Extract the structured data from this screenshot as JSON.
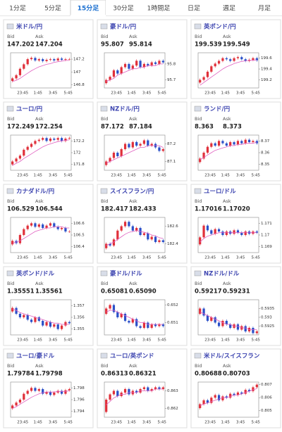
{
  "tabs": [
    "1分足",
    "5分足",
    "15分足",
    "30分足",
    "1時間足",
    "日足",
    "週足",
    "月足"
  ],
  "selected_tab": 2,
  "labels": {
    "bid": "Bid",
    "ask": "Ask"
  },
  "time_labels": [
    "23:45",
    "1:45",
    "3:45",
    "5:45"
  ],
  "colors": {
    "up": "#e0303a",
    "down": "#2b50c8",
    "ma": "#e060c0",
    "name": "#3d45b0"
  },
  "cards": [
    {
      "name": "米ドル/円",
      "bid": "147.202",
      "ask": "147.204",
      "ylim": [
        146.75,
        147.3
      ],
      "yticks": [
        147.2,
        147,
        146.8
      ],
      "closes": [
        146.86,
        146.9,
        146.95,
        147.05,
        147.12,
        147.2,
        147.22,
        147.18,
        147.2,
        147.17,
        147.19,
        147.2,
        147.18,
        147.21,
        147.19,
        147.2,
        147.2
      ],
      "ma": [
        146.85,
        146.87,
        146.9,
        146.94,
        146.98,
        147.02,
        147.05,
        147.08,
        147.1,
        147.12,
        147.13,
        147.15,
        147.16,
        147.17,
        147.18,
        147.18
      ]
    },
    {
      "name": "豪ドル/円",
      "bid": "95.807",
      "ask": "95.814",
      "ylim": [
        95.65,
        95.87
      ],
      "yticks": [
        95.8,
        95.7
      ],
      "closes": [
        95.68,
        95.7,
        95.72,
        95.76,
        95.74,
        95.78,
        95.8,
        95.77,
        95.79,
        95.82,
        95.78,
        95.8,
        95.79,
        95.81,
        95.8,
        95.82,
        95.81
      ],
      "ma": [
        95.69,
        95.7,
        95.71,
        95.73,
        95.74,
        95.75,
        95.76,
        95.77,
        95.77,
        95.78,
        95.78,
        95.79,
        95.79,
        95.79,
        95.8,
        95.8
      ]
    },
    {
      "name": "英ポンド/円",
      "bid": "199.539",
      "ask": "199.549",
      "ylim": [
        199.05,
        199.7
      ],
      "yticks": [
        199.6,
        199.4,
        199.2
      ],
      "closes": [
        199.15,
        199.2,
        199.25,
        199.35,
        199.45,
        199.5,
        199.55,
        199.6,
        199.58,
        199.55,
        199.6,
        199.62,
        199.58,
        199.55,
        199.57,
        199.6,
        199.56
      ],
      "ma": [
        199.1,
        199.15,
        199.2,
        199.25,
        199.3,
        199.35,
        199.4,
        199.44,
        199.47,
        199.5,
        199.52,
        199.54,
        199.55,
        199.56,
        199.56,
        199.57
      ]
    },
    {
      "name": "ユーロ/円",
      "bid": "172.249",
      "ask": "172.254",
      "ylim": [
        171.7,
        172.3
      ],
      "yticks": [
        172.2,
        172,
        171.8
      ],
      "closes": [
        171.8,
        171.85,
        171.9,
        171.95,
        172.05,
        172.1,
        172.15,
        172.2,
        172.22,
        172.25,
        172.2,
        172.24,
        172.22,
        172.25,
        172.2,
        172.24,
        172.25
      ],
      "ma": [
        171.78,
        171.82,
        171.85,
        171.9,
        171.94,
        171.98,
        172.02,
        172.06,
        172.1,
        172.13,
        172.15,
        172.17,
        172.19,
        172.2,
        172.21,
        172.22
      ]
    },
    {
      "name": "NZドル/円",
      "bid": "87.172",
      "ask": "87.184",
      "ylim": [
        87.05,
        87.25
      ],
      "yticks": [
        87.2,
        87.1
      ],
      "closes": [
        87.08,
        87.1,
        87.12,
        87.15,
        87.13,
        87.17,
        87.2,
        87.18,
        87.21,
        87.19,
        87.2,
        87.22,
        87.19,
        87.2,
        87.18,
        87.16,
        87.17
      ],
      "ma": [
        87.09,
        87.1,
        87.11,
        87.12,
        87.13,
        87.14,
        87.15,
        87.16,
        87.17,
        87.18,
        87.18,
        87.19,
        87.19,
        87.19,
        87.19,
        87.18
      ]
    },
    {
      "name": "ランド/円",
      "bid": "8.363",
      "ask": "8.373",
      "ylim": [
        8.345,
        8.375
      ],
      "yticks": [
        8.37,
        8.36,
        8.35
      ],
      "closes": [
        8.352,
        8.355,
        8.36,
        8.365,
        8.368,
        8.366,
        8.37,
        8.368,
        8.366,
        8.369,
        8.367,
        8.37,
        8.368,
        8.371,
        8.369,
        8.37,
        8.368
      ],
      "ma": [
        8.354,
        8.356,
        8.358,
        8.36,
        8.362,
        8.363,
        8.364,
        8.365,
        8.366,
        8.366,
        8.367,
        8.367,
        8.368,
        8.368,
        8.368,
        8.369
      ]
    },
    {
      "name": "カナダドル/円",
      "bid": "106.529",
      "ask": "106.544",
      "ylim": [
        106.35,
        106.65
      ],
      "yticks": [
        106.6,
        106.5,
        106.4
      ],
      "closes": [
        106.42,
        106.45,
        106.43,
        106.5,
        106.55,
        106.58,
        106.6,
        106.57,
        106.59,
        106.56,
        106.58,
        106.6,
        106.57,
        106.55,
        106.56,
        106.53,
        106.53
      ],
      "ma": [
        106.43,
        106.44,
        106.45,
        106.47,
        106.49,
        106.51,
        106.53,
        106.54,
        106.55,
        106.56,
        106.56,
        106.57,
        106.57,
        106.57,
        106.56,
        106.56
      ]
    },
    {
      "name": "スイスフラン/円",
      "bid": "182.417",
      "ask": "182.433",
      "ylim": [
        182.3,
        182.7
      ],
      "yticks": [
        182.6,
        182.4
      ],
      "closes": [
        182.35,
        182.4,
        182.38,
        182.45,
        182.55,
        182.6,
        182.65,
        182.6,
        182.55,
        182.58,
        182.5,
        182.52,
        182.45,
        182.48,
        182.42,
        182.44,
        182.42
      ],
      "ma": [
        182.38,
        182.4,
        182.42,
        182.45,
        182.48,
        182.51,
        182.53,
        182.54,
        182.55,
        182.54,
        182.53,
        182.52,
        182.5,
        182.49,
        182.47,
        182.46
      ]
    },
    {
      "name": "ユーロ/ドル",
      "bid": "1.17016",
      "ask": "1.17020",
      "ylim": [
        1.1685,
        1.1715
      ],
      "yticks": [
        1.171,
        1.17,
        1.169
      ],
      "closes": [
        1.1692,
        1.1698,
        1.1708,
        1.1704,
        1.1701,
        1.1705,
        1.1703,
        1.17,
        1.1703,
        1.1701,
        1.1704,
        1.1702,
        1.17,
        1.1703,
        1.1701,
        1.1703,
        1.1702
      ],
      "ma": [
        1.1694,
        1.1697,
        1.1699,
        1.17,
        1.1701,
        1.1702,
        1.1702,
        1.1702,
        1.1702,
        1.1702,
        1.1702,
        1.1702,
        1.1702,
        1.1702,
        1.1702,
        1.1702
      ]
    },
    {
      "name": "英ポンド/ドル",
      "bid": "1.35551",
      "ask": "1.35561",
      "ylim": [
        1.3545,
        1.3575
      ],
      "yticks": [
        1.357,
        1.356,
        1.355
      ],
      "closes": [
        1.3565,
        1.3568,
        1.3563,
        1.356,
        1.3562,
        1.3558,
        1.3556,
        1.356,
        1.3557,
        1.3553,
        1.3556,
        1.3552,
        1.3554,
        1.355,
        1.3553,
        1.3556,
        1.3555
      ],
      "ma": [
        1.3567,
        1.3566,
        1.3564,
        1.3563,
        1.3562,
        1.3561,
        1.356,
        1.3559,
        1.3558,
        1.3557,
        1.3556,
        1.3555,
        1.3555,
        1.3554,
        1.3554,
        1.3554
      ]
    },
    {
      "name": "豪ドル/ドル",
      "bid": "0.65081",
      "ask": "0.65090",
      "ylim": [
        0.6503,
        0.6523
      ],
      "yticks": [
        0.652,
        0.651
      ],
      "closes": [
        0.6515,
        0.6518,
        0.652,
        0.6516,
        0.6513,
        0.6515,
        0.6511,
        0.651,
        0.6512,
        0.6508,
        0.6507,
        0.651,
        0.6507,
        0.6509,
        0.6508,
        0.6509,
        0.6508
      ],
      "ma": [
        0.6516,
        0.6517,
        0.6517,
        0.6516,
        0.6515,
        0.6514,
        0.6513,
        0.6512,
        0.6511,
        0.651,
        0.651,
        0.6509,
        0.6509,
        0.6509,
        0.6509,
        0.6509
      ]
    },
    {
      "name": "NZドル/ドル",
      "bid": "0.59217",
      "ask": "0.59231",
      "ylim": [
        0.592,
        0.594
      ],
      "yticks": [
        0.5935,
        0.593,
        0.5925
      ],
      "closes": [
        0.5932,
        0.5935,
        0.5931,
        0.5928,
        0.593,
        0.5927,
        0.5925,
        0.5928,
        0.5926,
        0.5924,
        0.5926,
        0.5923,
        0.5925,
        0.5922,
        0.5924,
        0.5921,
        0.5922
      ],
      "ma": [
        0.5933,
        0.5932,
        0.5931,
        0.593,
        0.5929,
        0.5928,
        0.5927,
        0.5926,
        0.5926,
        0.5925,
        0.5925,
        0.5924,
        0.5924,
        0.5923,
        0.5923,
        0.5923
      ]
    },
    {
      "name": "ユーロ/豪ドル",
      "bid": "1.79784",
      "ask": "1.79798",
      "ylim": [
        1.793,
        1.799
      ],
      "yticks": [
        1.798,
        1.796,
        1.794
      ],
      "closes": [
        1.7945,
        1.795,
        1.7955,
        1.796,
        1.797,
        1.7975,
        1.798,
        1.7975,
        1.7978,
        1.797,
        1.7973,
        1.7968,
        1.7972,
        1.7975,
        1.797,
        1.7976,
        1.7978
      ],
      "ma": [
        1.7945,
        1.7948,
        1.7952,
        1.7956,
        1.796,
        1.7964,
        1.7967,
        1.797,
        1.7972,
        1.7973,
        1.7973,
        1.7973,
        1.7974,
        1.7974,
        1.7974,
        1.7975
      ]
    },
    {
      "name": "ユーロ/英ポンド",
      "bid": "0.86313",
      "ask": "0.86321",
      "ylim": [
        0.8615,
        0.8635
      ],
      "yticks": [
        0.863,
        0.862
      ],
      "closes": [
        0.8618,
        0.8625,
        0.8628,
        0.863,
        0.8627,
        0.8629,
        0.8631,
        0.8628,
        0.863,
        0.8629,
        0.8631,
        0.8632,
        0.863,
        0.8631,
        0.8632,
        0.8631,
        0.8632
      ],
      "ma": [
        0.8622,
        0.8624,
        0.8626,
        0.8627,
        0.8628,
        0.8628,
        0.8629,
        0.8629,
        0.8629,
        0.863,
        0.863,
        0.863,
        0.863,
        0.8631,
        0.8631,
        0.8631
      ]
    },
    {
      "name": "米ドル/スイスフラン",
      "bid": "0.80688",
      "ask": "0.80703",
      "ylim": [
        0.8045,
        0.8072
      ],
      "yticks": [
        0.807,
        0.806,
        0.805
      ],
      "closes": [
        0.8052,
        0.8055,
        0.8058,
        0.8056,
        0.806,
        0.8062,
        0.8058,
        0.8061,
        0.806,
        0.8063,
        0.8062,
        0.8064,
        0.8063,
        0.8066,
        0.8065,
        0.8068,
        0.807
      ],
      "ma": [
        0.8054,
        0.8055,
        0.8056,
        0.8057,
        0.8058,
        0.8059,
        0.806,
        0.806,
        0.8061,
        0.8062,
        0.8062,
        0.8063,
        0.8064,
        0.8065,
        0.8066,
        0.8067
      ]
    }
  ]
}
